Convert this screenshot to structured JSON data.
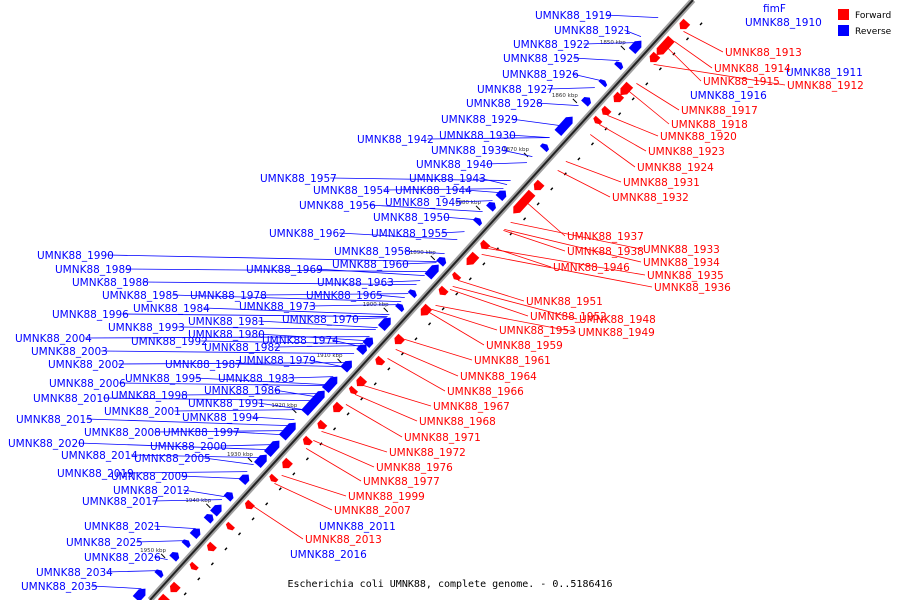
{
  "colors": {
    "forward": "#ff0000",
    "reverse": "#0000ff",
    "axis": "#999999"
  },
  "caption": "Escherichia coli UMNK88, complete genome. - 0..5186416",
  "legend": [
    {
      "label": "Forward",
      "color": "#ff0000"
    },
    {
      "label": "Reverse",
      "color": "#0000ff"
    }
  ],
  "kbp_marks": [
    "1840 kbp",
    "1850 kbp",
    "1860 kbp",
    "1870 kbp",
    "1880 kbp",
    "1890 kbp",
    "1900 kbp",
    "1910 kbp",
    "1920 kbp",
    "1930 kbp",
    "1940 kbp",
    "1950 kbp"
  ],
  "reverse_labels": [
    "fimF",
    "UMNK88_1910",
    "UMNK88_1911",
    "UMNK88_1916",
    "UMNK88_1919",
    "UMNK88_1921",
    "UMNK88_1922",
    "UMNK88_1925",
    "UMNK88_1926",
    "UMNK88_1927",
    "UMNK88_1928",
    "UMNK88_1929",
    "UMNK88_1942",
    "UMNK88_1930",
    "UMNK88_1939",
    "UMNK88_1940",
    "UMNK88_1957",
    "UMNK88_1943",
    "UMNK88_1954",
    "UMNK88_1944",
    "UMNK88_1956",
    "UMNK88_1945",
    "UMNK88_1950",
    "UMNK88_1962",
    "UMNK88_1955",
    "UMNK88_1958",
    "UMNK88_1990",
    "UMNK88_1960",
    "UMNK88_1989",
    "UMNK88_1969",
    "UMNK88_1963",
    "UMNK88_1988",
    "UMNK88_1985",
    "UMNK88_1978",
    "UMNK88_1965",
    "UMNK88_1984",
    "UMNK88_1973",
    "UMNK88_1996",
    "UMNK88_1981",
    "UMNK88_1970",
    "UMNK88_1993",
    "UMNK88_1980",
    "UMNK88_2004",
    "UMNK88_1992",
    "UMNK88_1974",
    "UMNK88_1982",
    "UMNK88_2003",
    "UMNK88_1979",
    "UMNK88_2002",
    "UMNK88_1987",
    "UMNK88_1995",
    "UMNK88_1983",
    "UMNK88_2006",
    "UMNK88_1986",
    "UMNK88_1998",
    "UMNK88_2010",
    "UMNK88_1991",
    "UMNK88_2001",
    "UMNK88_1994",
    "UMNK88_2015",
    "UMNK88_2008",
    "UMNK88_1997",
    "UMNK88_2020",
    "UMNK88_2000",
    "UMNK88_2014",
    "UMNK88_2005",
    "UMNK88_2019",
    "UMNK88_2009",
    "UMNK88_2012",
    "UMNK88_2017",
    "UMNK88_2021",
    "UMNK88_2011",
    "UMNK88_2025",
    "UMNK88_2026",
    "UMNK88_2016",
    "UMNK88_2034",
    "UMNK88_2035"
  ],
  "forward_labels": [
    "UMNK88_1913",
    "UMNK88_1914",
    "UMNK88_1915",
    "UMNK88_1912",
    "UMNK88_1917",
    "UMNK88_1918",
    "UMNK88_1920",
    "UMNK88_1923",
    "UMNK88_1924",
    "UMNK88_1931",
    "UMNK88_1932",
    "UMNK88_1937",
    "UMNK88_1938",
    "UMNK88_1933",
    "UMNK88_1934",
    "UMNK88_1946",
    "UMNK88_1935",
    "UMNK88_1936",
    "UMNK88_1951",
    "UMNK88_1952",
    "UMNK88_1948",
    "UMNK88_1953",
    "UMNK88_1949",
    "UMNK88_1959",
    "UMNK88_1961",
    "UMNK88_1964",
    "UMNK88_1966",
    "UMNK88_1967",
    "UMNK88_1968",
    "UMNK88_1971",
    "UMNK88_1972",
    "UMNK88_1976",
    "UMNK88_1977",
    "UMNK88_1999",
    "UMNK88_2007",
    "UMNK88_2013"
  ]
}
